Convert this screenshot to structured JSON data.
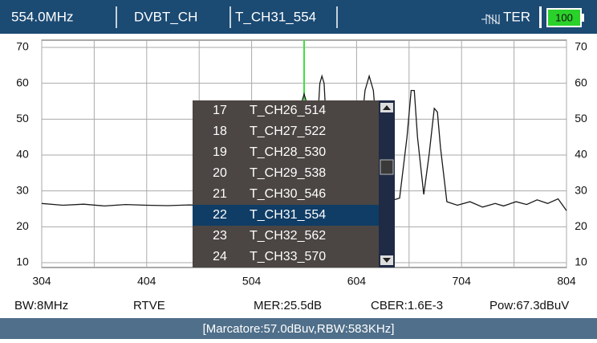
{
  "header": {
    "frequency": "554.0MHz",
    "mode": "DVBT_CH",
    "channel": "T_CH31_554",
    "band": "TER",
    "battery": "100"
  },
  "chart_data": {
    "type": "line",
    "color": "#1a1a1a",
    "grid": true,
    "x": [
      304,
      324,
      344,
      364,
      384,
      404,
      424,
      444,
      464,
      484,
      504,
      524,
      540,
      548,
      552,
      554,
      556,
      560,
      565,
      569,
      571,
      573,
      577,
      585,
      595,
      606,
      612,
      616,
      620,
      626,
      634,
      645,
      652,
      656,
      659,
      662,
      668,
      673,
      678,
      681,
      684,
      690,
      700,
      712,
      724,
      736,
      744,
      756,
      766,
      776,
      786,
      796,
      804
    ],
    "values": [
      26.5,
      26.0,
      26.3,
      25.8,
      26.2,
      26.0,
      25.9,
      26.1,
      26.0,
      26.2,
      26.0,
      26.3,
      27,
      35,
      55,
      57,
      55,
      36,
      40,
      60,
      62,
      60,
      38,
      28,
      27,
      40,
      58,
      62,
      58,
      36,
      27,
      28,
      45,
      58,
      58,
      45,
      29,
      40,
      53,
      52,
      42,
      27,
      26,
      27,
      25.5,
      26.5,
      25.8,
      27,
      26.2,
      27.5,
      26.5,
      27.8,
      24.5
    ],
    "xlim": [
      304,
      804
    ],
    "xticks": [
      304,
      404,
      504,
      604,
      704,
      804
    ],
    "xminor": [
      354,
      454,
      554,
      654,
      754
    ],
    "ylim": [
      10,
      70
    ],
    "yticks": [
      10,
      20,
      30,
      40,
      50,
      60,
      70
    ],
    "marker": {
      "x": 554,
      "color": "#3ee03e"
    }
  },
  "channel_list": {
    "selected": 5,
    "items": [
      {
        "number": "17",
        "name": "T_CH26_514"
      },
      {
        "number": "18",
        "name": "T_CH27_522"
      },
      {
        "number": "19",
        "name": "T_CH28_530"
      },
      {
        "number": "20",
        "name": "T_CH29_538"
      },
      {
        "number": "21",
        "name": "T_CH30_546"
      },
      {
        "number": "22",
        "name": "T_CH31_554"
      },
      {
        "number": "23",
        "name": "T_CH32_562"
      },
      {
        "number": "24",
        "name": "T_CH33_570"
      }
    ]
  },
  "info": {
    "bw": "BW:8MHz",
    "provider": "RTVE",
    "mer": "MER:25.5dB",
    "cber": "CBER:1.6E-3",
    "power": "Pow:67.3dBuV"
  },
  "status": "[Marcatore:57.0dBuv,RBW:583KHz]"
}
